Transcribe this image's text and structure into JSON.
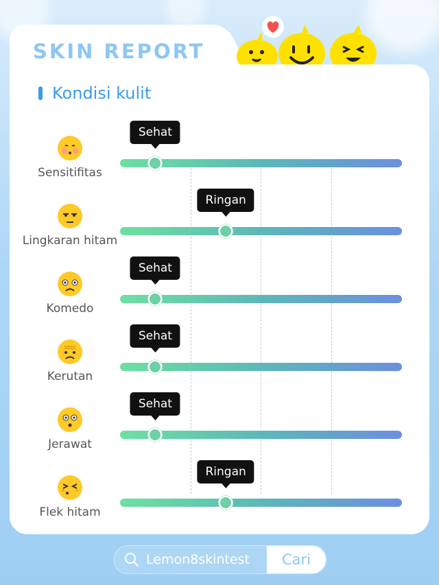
{
  "header": {
    "title": "SKIN REPORT"
  },
  "section": {
    "title": "Kondisi kulit"
  },
  "rows": [
    {
      "label": "Sensitifitas",
      "level": "Sehat",
      "value": 0.125,
      "emoji": "kissing-emoji"
    },
    {
      "label": "Lingkaran hitam",
      "level": "Ringan",
      "value": 0.375,
      "emoji": "tired-eyes-emoji"
    },
    {
      "label": "Komedo",
      "level": "Sehat",
      "value": 0.125,
      "emoji": "worried-emoji"
    },
    {
      "label": "Kerutan",
      "level": "Sehat",
      "value": 0.125,
      "emoji": "frowning-emoji"
    },
    {
      "label": "Jerawat",
      "level": "Sehat",
      "value": 0.125,
      "emoji": "surprised-emoji"
    },
    {
      "label": "Flek hitam",
      "level": "Ringan",
      "value": 0.375,
      "emoji": "wincing-emoji"
    }
  ],
  "search": {
    "text": "Lemon8skintest",
    "button": "Cari"
  },
  "colors": {
    "accent": "#3d9be9",
    "title": "#8ec7f2",
    "mascot": "#ffe100"
  }
}
